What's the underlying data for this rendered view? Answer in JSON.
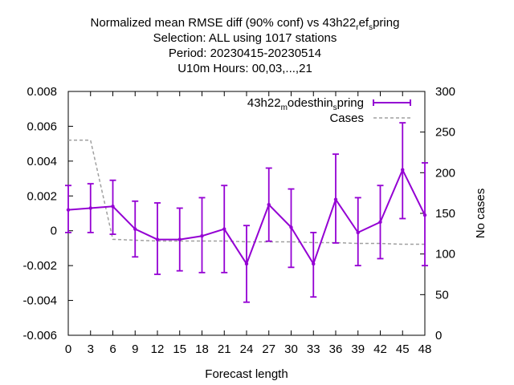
{
  "chart_data": {
    "type": "line",
    "title_lines": [
      "Normalized mean RMSE diff (90% conf) vs 43h22_ref_spring",
      "Selection: ALL using  1017 stations",
      "Period: 20230415-20230514",
      "U10m   Hours: 00,03,...,21"
    ],
    "xlabel": "Forecast length",
    "ylabel": "",
    "y2label": "No cases",
    "x": [
      0,
      3,
      6,
      9,
      12,
      15,
      18,
      21,
      24,
      27,
      30,
      33,
      36,
      39,
      42,
      45,
      48
    ],
    "xlim": [
      0,
      48
    ],
    "ylim": [
      -0.006,
      0.008
    ],
    "y2lim": [
      0,
      300
    ],
    "x_ticks": [
      "0",
      "3",
      "6",
      "9",
      "12",
      "15",
      "18",
      "21",
      "24",
      "27",
      "30",
      "33",
      "36",
      "39",
      "42",
      "45",
      "48"
    ],
    "x_tick_values": [
      0,
      3,
      6,
      9,
      12,
      15,
      18,
      21,
      24,
      27,
      30,
      33,
      36,
      39,
      42,
      45,
      48
    ],
    "y_ticks": [
      "-0.006",
      "-0.004",
      "-0.002",
      "0",
      "0.002",
      "0.004",
      "0.006",
      "0.008"
    ],
    "y_tick_values": [
      -0.006,
      -0.004,
      -0.002,
      0,
      0.002,
      0.004,
      0.006,
      0.008
    ],
    "y2_ticks": [
      "0",
      "50",
      "100",
      "150",
      "200",
      "250",
      "300"
    ],
    "y2_tick_values": [
      0,
      50,
      100,
      150,
      200,
      250,
      300
    ],
    "grid": false,
    "legend_position": "top-right",
    "series": [
      {
        "name": "43h22_modesthin_spring",
        "axis": "y",
        "style": "errorbars",
        "color": "#9400d3",
        "values": [
          0.0012,
          0.0013,
          0.0014,
          0.0001,
          -0.0005,
          -0.0005,
          -0.0003,
          0.0001,
          -0.0019,
          0.0015,
          0.0002,
          -0.0019,
          0.0018,
          -0.0001,
          0.0005,
          0.0035,
          0.0009
        ],
        "low": [
          -0.0001,
          -0.0001,
          -0.0002,
          -0.0015,
          -0.0025,
          -0.0023,
          -0.0024,
          -0.0024,
          -0.0041,
          -0.0006,
          -0.0021,
          -0.0038,
          -0.0007,
          -0.002,
          -0.0016,
          0.0007,
          -0.002
        ],
        "high": [
          0.0026,
          0.0027,
          0.0029,
          0.0017,
          0.0016,
          0.0013,
          0.0019,
          0.0026,
          0.0003,
          0.0036,
          0.0024,
          -0.0001,
          0.0044,
          0.0019,
          0.0026,
          0.0062,
          0.0039
        ]
      },
      {
        "name": "Cases",
        "axis": "y2",
        "style": "dashed",
        "color": "#a0a0a0",
        "values": [
          240,
          240,
          118,
          117,
          116,
          116,
          116,
          116,
          115,
          115,
          115,
          114,
          114,
          113,
          113,
          112,
          112
        ]
      }
    ]
  }
}
